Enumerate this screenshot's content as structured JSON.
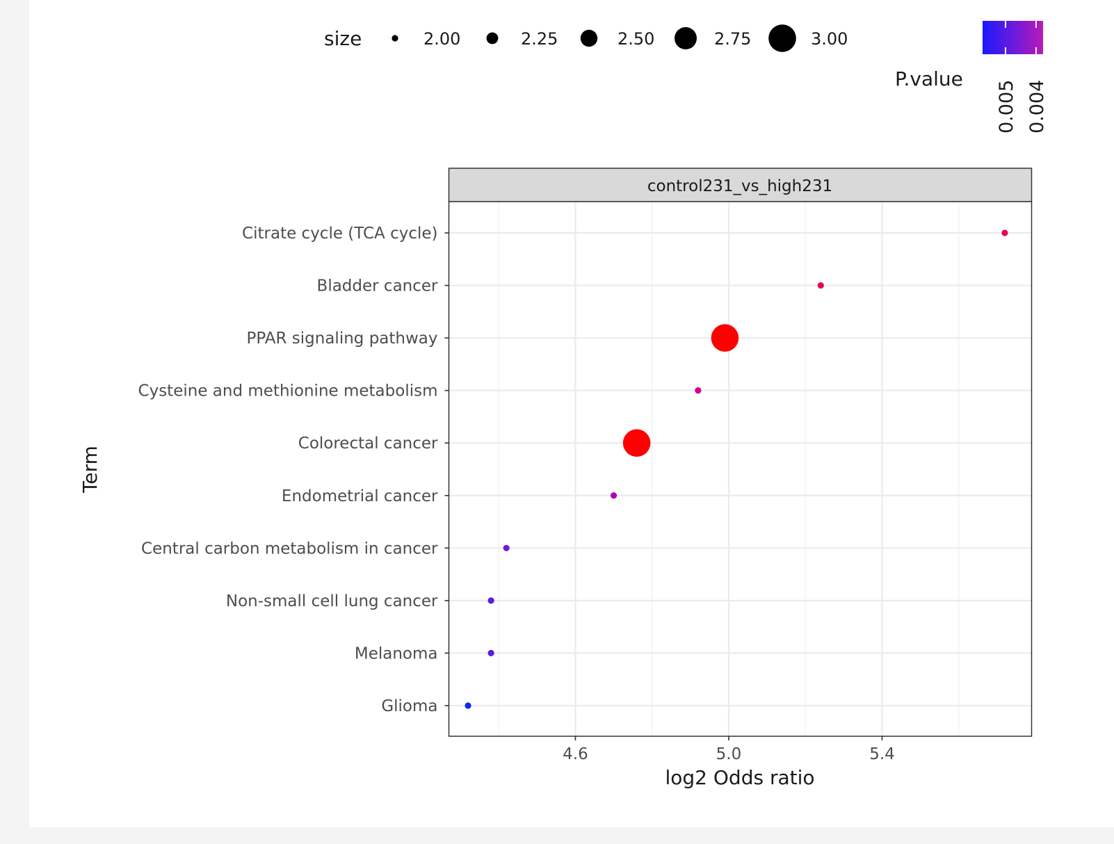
{
  "chart_data": {
    "type": "scatter",
    "facet_title": "control231_vs_high231",
    "xlabel": "log2 Odds ratio",
    "ylabel": "Term",
    "xlim": [
      4.27,
      5.79
    ],
    "x_ticks": [
      4.6,
      5.0,
      5.4
    ],
    "x_tick_labels": [
      "4.6",
      "5.0",
      "5.4"
    ],
    "grid": true,
    "categories": [
      "Citrate cycle (TCA cycle)",
      "Bladder cancer",
      "PPAR signaling pathway",
      "Cysteine and methionine metabolism",
      "Colorectal cancer",
      "Endometrial cancer",
      "Central carbon metabolism in cancer",
      "Non-small cell lung cancer",
      "Melanoma",
      "Glioma"
    ],
    "points": [
      {
        "term": "Citrate cycle (TCA cycle)",
        "x": 5.72,
        "size": 2,
        "pvalue": 0.0039,
        "color": "#e8005c"
      },
      {
        "term": "Bladder cancer",
        "x": 5.24,
        "size": 2,
        "pvalue": 0.0039,
        "color": "#e8005c"
      },
      {
        "term": "PPAR signaling pathway",
        "x": 4.99,
        "size": 3,
        "pvalue": 0.0035,
        "color": "#ff0000"
      },
      {
        "term": "Cysteine and methionine metabolism",
        "x": 4.92,
        "size": 2,
        "pvalue": 0.0042,
        "color": "#d4008c"
      },
      {
        "term": "Colorectal cancer",
        "x": 4.76,
        "size": 3,
        "pvalue": 0.0035,
        "color": "#ff0000"
      },
      {
        "term": "Endometrial cancer",
        "x": 4.7,
        "size": 2,
        "pvalue": 0.0045,
        "color": "#b000b4"
      },
      {
        "term": "Central carbon metabolism in cancer",
        "x": 4.42,
        "size": 2,
        "pvalue": 0.0051,
        "color": "#7018e0"
      },
      {
        "term": "Non-small cell lung cancer",
        "x": 4.38,
        "size": 2,
        "pvalue": 0.0053,
        "color": "#5a1ce6"
      },
      {
        "term": "Melanoma",
        "x": 4.38,
        "size": 2,
        "pvalue": 0.0053,
        "color": "#5a1ce6"
      },
      {
        "term": "Glioma",
        "x": 4.32,
        "size": 2,
        "pvalue": 0.0056,
        "color": "#0a2af5"
      }
    ],
    "size_legend": {
      "title": "size",
      "values": [
        2.0,
        2.25,
        2.5,
        2.75,
        3.0
      ],
      "labels": [
        "2.00",
        "2.25",
        "2.50",
        "2.75",
        "3.00"
      ]
    },
    "color_legend": {
      "title": "P.value",
      "labels": [
        "0.005",
        "0.004"
      ],
      "low_color": "#0000ff",
      "high_color": "#ff0000",
      "shown_from_color": "#1a1aff",
      "shown_to_color": "#b91ab9"
    },
    "legend_position": "top"
  }
}
